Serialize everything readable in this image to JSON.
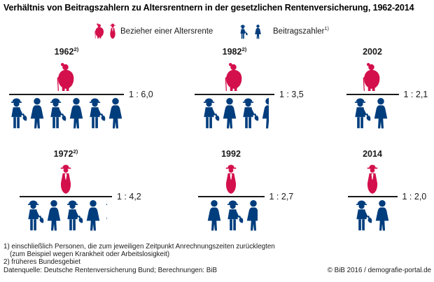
{
  "title": "Verhältnis von Beitragszahlern zu Altersrentnern in der gesetzlichen Rentenversicherung, 1962-2014",
  "colors": {
    "pensioner_red": "#d3104c",
    "contributor_blue": "#003d7d",
    "line": "#1a1a1a"
  },
  "legend": {
    "pensioners_label": "Bezieher einer Altersrente",
    "contributors_label": "Beitragszahler",
    "contributors_footnote_ref": "1)",
    "pensioner_icons": [
      "elderly-woman",
      "elderly-man"
    ],
    "contributor_icons": [
      "worker-man",
      "woman"
    ]
  },
  "chart_data": {
    "type": "pictogram",
    "title": "Verhältnis von Beitragszahlern zu Altersrentnern in der gesetzlichen Rentenversicherung, 1962-2014",
    "description": "Ein roter Rentner über dem Strich, Beitragszahler (blau) darunter; Verhältnis 1 : x",
    "panels": [
      {
        "year": "1962",
        "year_footnote_ref": "2)",
        "ratio_label": "1 : 6,0",
        "contributors_per_pensioner": 6.0,
        "pensioner_icon": "elderly-woman",
        "contributors": [
          {
            "icon": "worker-man"
          },
          {
            "icon": "woman"
          },
          {
            "icon": "worker-man"
          },
          {
            "icon": "woman"
          },
          {
            "icon": "worker-man"
          },
          {
            "icon": "woman"
          }
        ]
      },
      {
        "year": "1982",
        "year_footnote_ref": "2)",
        "ratio_label": "1 : 3,5",
        "contributors_per_pensioner": 3.5,
        "pensioner_icon": "elderly-woman",
        "contributors": [
          {
            "icon": "worker-man"
          },
          {
            "icon": "woman"
          },
          {
            "icon": "worker-man"
          },
          {
            "icon": "woman",
            "fraction": 0.5
          }
        ]
      },
      {
        "year": "2002",
        "year_footnote_ref": "",
        "ratio_label": "1 : 2,1",
        "contributors_per_pensioner": 2.1,
        "pensioner_icon": "elderly-woman",
        "contributors": [
          {
            "icon": "worker-man"
          },
          {
            "icon": "woman"
          },
          {
            "icon": "worker-man",
            "fraction": 0.12
          }
        ]
      },
      {
        "year": "1972",
        "year_footnote_ref": "2)",
        "ratio_label": "1 : 4,2",
        "contributors_per_pensioner": 4.2,
        "pensioner_icon": "elderly-man",
        "contributors": [
          {
            "icon": "worker-man"
          },
          {
            "icon": "woman"
          },
          {
            "icon": "worker-man"
          },
          {
            "icon": "woman"
          },
          {
            "icon": "worker-man",
            "fraction": 0.2
          }
        ]
      },
      {
        "year": "1992",
        "year_footnote_ref": "",
        "ratio_label": "1 : 2,7",
        "contributors_per_pensioner": 2.7,
        "pensioner_icon": "elderly-man",
        "contributors": [
          {
            "icon": "woman"
          },
          {
            "icon": "worker-man"
          },
          {
            "icon": "woman",
            "fraction": 0.7
          }
        ]
      },
      {
        "year": "2014",
        "year_footnote_ref": "",
        "ratio_label": "1 : 2,0",
        "contributors_per_pensioner": 2.0,
        "pensioner_icon": "elderly-man",
        "contributors": [
          {
            "icon": "worker-man"
          },
          {
            "icon": "woman"
          }
        ]
      }
    ]
  },
  "footnotes": {
    "line1": "1) einschließlich Personen, die zum jeweiligen Zeitpunkt Anrechnungszeiten zurücklegten",
    "line2": "(zum Beispiel wegen Krankheit oder Arbeitslosigkeit)",
    "line3": "2) früheres Bundesgebiet"
  },
  "source": "Datenquelle: Deutsche Rentenversicherung Bund; Berechnungen: BiB",
  "copyright": "© BiB 2016 / demografie-portal.de"
}
